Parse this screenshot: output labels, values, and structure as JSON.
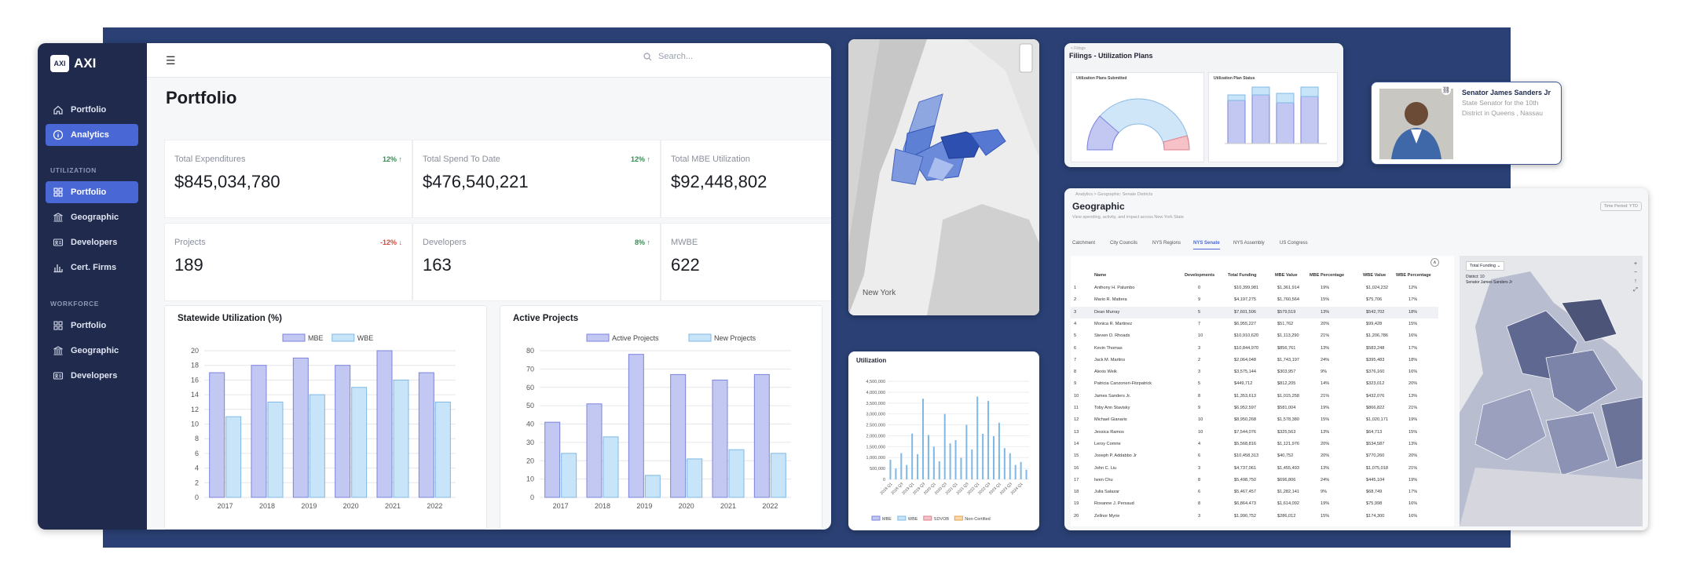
{
  "app": {
    "logo_mark": "AXI",
    "logo_text": "AXI",
    "search_placeholder": "Search...",
    "page_title": "Portfolio"
  },
  "sidebar": {
    "top": [
      {
        "label": "Portfolio",
        "icon": "home-icon"
      },
      {
        "label": "Analytics",
        "icon": "info-icon",
        "active": true
      }
    ],
    "utilization_header": "UTILIZATION",
    "utilization": [
      {
        "label": "Portfolio",
        "icon": "grid-icon",
        "active": true
      },
      {
        "label": "Geographic",
        "icon": "bank-icon"
      },
      {
        "label": "Developers",
        "icon": "id-card-icon"
      },
      {
        "label": "Cert. Firms",
        "icon": "bar-chart-icon"
      }
    ],
    "workforce_header": "WORKFORCE",
    "workforce": [
      {
        "label": "Portfolio",
        "icon": "grid-icon"
      },
      {
        "label": "Geographic",
        "icon": "bank-icon"
      },
      {
        "label": "Developers",
        "icon": "id-card-icon"
      }
    ]
  },
  "stats": [
    {
      "label": "Total Expenditures",
      "value": "$845,034,780",
      "change": "12%",
      "dir": "up"
    },
    {
      "label": "Total Spend To Date",
      "value": "$476,540,221",
      "change": "12%",
      "dir": "up"
    },
    {
      "label": "Total MBE Utilization",
      "value": "$92,448,802",
      "change": "",
      "dir": ""
    },
    {
      "label": "Projects",
      "value": "189",
      "change": "-12%",
      "dir": "down"
    },
    {
      "label": "Developers",
      "value": "163",
      "change": "8%",
      "dir": "up"
    },
    {
      "label": "MWBE",
      "value": "622",
      "change": "",
      "dir": ""
    }
  ],
  "colors": {
    "bar_a": "#c3c8f3",
    "bar_a_stroke": "#7b83dd",
    "bar_b": "#c7e4f8",
    "bar_b_stroke": "#7fb8e4",
    "navy": "#2b4175"
  },
  "chart_data": [
    {
      "type": "bar",
      "title": "Statewide Utilization (%)",
      "categories": [
        "2017",
        "2018",
        "2019",
        "2020",
        "2021",
        "2022"
      ],
      "series": [
        {
          "name": "MBE",
          "values": [
            17,
            18,
            19,
            18,
            20,
            17
          ]
        },
        {
          "name": "WBE",
          "values": [
            11,
            13,
            14,
            15,
            16,
            13
          ]
        }
      ],
      "ylim": [
        0,
        20
      ],
      "yticks": [
        0,
        2,
        4,
        6,
        8,
        10,
        12,
        14,
        16,
        18,
        20
      ]
    },
    {
      "type": "bar",
      "title": "Active Projects",
      "categories": [
        "2017",
        "2018",
        "2019",
        "2020",
        "2021",
        "2022"
      ],
      "series": [
        {
          "name": "Active Projects",
          "values": [
            41,
            51,
            78,
            67,
            64,
            67
          ]
        },
        {
          "name": "New Projects",
          "values": [
            24,
            33,
            12,
            21,
            26,
            24
          ]
        }
      ],
      "ylim": [
        0,
        80
      ],
      "yticks": [
        0,
        10,
        20,
        30,
        40,
        50,
        60,
        70,
        80
      ]
    },
    {
      "type": "bar",
      "title": "Utilization",
      "categories": [
        "2018 Q1",
        "2018 Q3",
        "2019 Q1",
        "2019 Q3",
        "2020 Q1",
        "2020 Q3",
        "2021 Q1",
        "2021 Q3",
        "2022 Q1",
        "2022 Q3",
        "2023 Q1",
        "2023 Q3",
        "2024 Q1"
      ],
      "values": [
        900000,
        1200000,
        2100000,
        3700000,
        1500000,
        3000000,
        1800000,
        2500000,
        3800000,
        3600000,
        2600000,
        1200000,
        800000
      ],
      "legend": [
        "MBE",
        "WBE",
        "SDVOB",
        "Non-Certified"
      ],
      "yticks": [
        "4,500,000",
        "4,000,000",
        "3,500,000",
        "3,000,000",
        "2,500,000",
        "2,000,000",
        "1,500,000",
        "1,000,000",
        "500,000",
        "0"
      ]
    }
  ],
  "map1": {
    "label": "New York"
  },
  "filings": {
    "breadcrumb": "< Filings",
    "title": "Filings - Utilization Plans",
    "c1": "Utilization Plans Submitted",
    "c2": "Utilization Plan Status"
  },
  "senator": {
    "name": "Senator James Sanders Jr",
    "role": "State Senator for the 10th District in Queens , Nassau"
  },
  "geo": {
    "breadcrumb": "Analytics  >  Geographic: Senate Districts",
    "title": "Geographic",
    "subtitle": "View spending, activity, and impact across New York State",
    "period": "Time Period: YTD",
    "tabs": [
      "Catchment",
      "City Councils",
      "NYS Regions",
      "NYS Senate",
      "NYS Assembly",
      "US Congress"
    ],
    "headers": [
      "Name",
      "Developments",
      "Total Funding",
      "MBE Value",
      "MBE Percentage",
      "WBE Value",
      "WBE Percentage"
    ],
    "rows": [
      [
        "1",
        "Anthony H. Palumbo",
        "0",
        "$10,399,981",
        "$1,361,914",
        "19%",
        "$1,024,232",
        "12%"
      ],
      [
        "2",
        "Mario R. Mattera",
        "9",
        "$4,197,275",
        "$1,760,564",
        "15%",
        "$75,706",
        "17%"
      ],
      [
        "3",
        "Dean Murray",
        "5",
        "$7,601,506",
        "$579,519",
        "13%",
        "$542,702",
        "18%"
      ],
      [
        "4",
        "Monica R. Martinez",
        "7",
        "$6,955,227",
        "$51,762",
        "20%",
        "$99,428",
        "15%"
      ],
      [
        "5",
        "Steven D. Rhoads",
        "10",
        "$10,910,620",
        "$1,113,290",
        "21%",
        "$1,206,786",
        "16%"
      ],
      [
        "6",
        "Kevin Thomas",
        "3",
        "$10,844,970",
        "$856,761",
        "13%",
        "$583,248",
        "17%"
      ],
      [
        "7",
        "Jack M. Martins",
        "2",
        "$2,064,048",
        "$1,743,197",
        "24%",
        "$395,483",
        "18%"
      ],
      [
        "8",
        "Alexis Weik",
        "3",
        "$3,575,144",
        "$303,957",
        "9%",
        "$376,160",
        "16%"
      ],
      [
        "9",
        "Patricia Canzoneri-Fitzpatrick",
        "5",
        "$449,712",
        "$812,205",
        "14%",
        "$323,012",
        "20%"
      ],
      [
        "10",
        "James Sanders Jr.",
        "8",
        "$1,353,613",
        "$1,015,258",
        "21%",
        "$432,076",
        "13%"
      ],
      [
        "11",
        "Toby Ann Stavisky",
        "9",
        "$6,952,597",
        "$581,004",
        "19%",
        "$866,822",
        "21%"
      ],
      [
        "12",
        "Michael Gianaris",
        "10",
        "$8,950,268",
        "$1,578,380",
        "15%",
        "$1,020,171",
        "19%"
      ],
      [
        "13",
        "Jessica Ramos",
        "10",
        "$7,544,076",
        "$325,563",
        "13%",
        "$64,713",
        "15%"
      ],
      [
        "14",
        "Leroy Comrie",
        "4",
        "$5,568,816",
        "$1,121,976",
        "20%",
        "$534,587",
        "13%"
      ],
      [
        "15",
        "Joseph P. Addabbo Jr",
        "6",
        "$10,458,313",
        "$40,752",
        "20%",
        "$770,260",
        "20%"
      ],
      [
        "16",
        "John C. Liu",
        "3",
        "$4,737,061",
        "$1,455,493",
        "13%",
        "$1,075,018",
        "21%"
      ],
      [
        "17",
        "Iwen Chu",
        "8",
        "$5,498,750",
        "$696,806",
        "24%",
        "$445,104",
        "19%"
      ],
      [
        "18",
        "Julia Salazar",
        "6",
        "$5,467,457",
        "$1,282,141",
        "9%",
        "$68,749",
        "17%"
      ],
      [
        "19",
        "Roxanne J. Persaud",
        "8",
        "$6,864,473",
        "$1,614,092",
        "19%",
        "$75,998",
        "16%"
      ],
      [
        "20",
        "Zellnor Myrie",
        "3",
        "$1,990,752",
        "$286,012",
        "15%",
        "$174,300",
        "16%"
      ]
    ],
    "map_select": "Total Funding",
    "district_label": "District: 10",
    "district_name": "Senator James Sanders Jr"
  }
}
